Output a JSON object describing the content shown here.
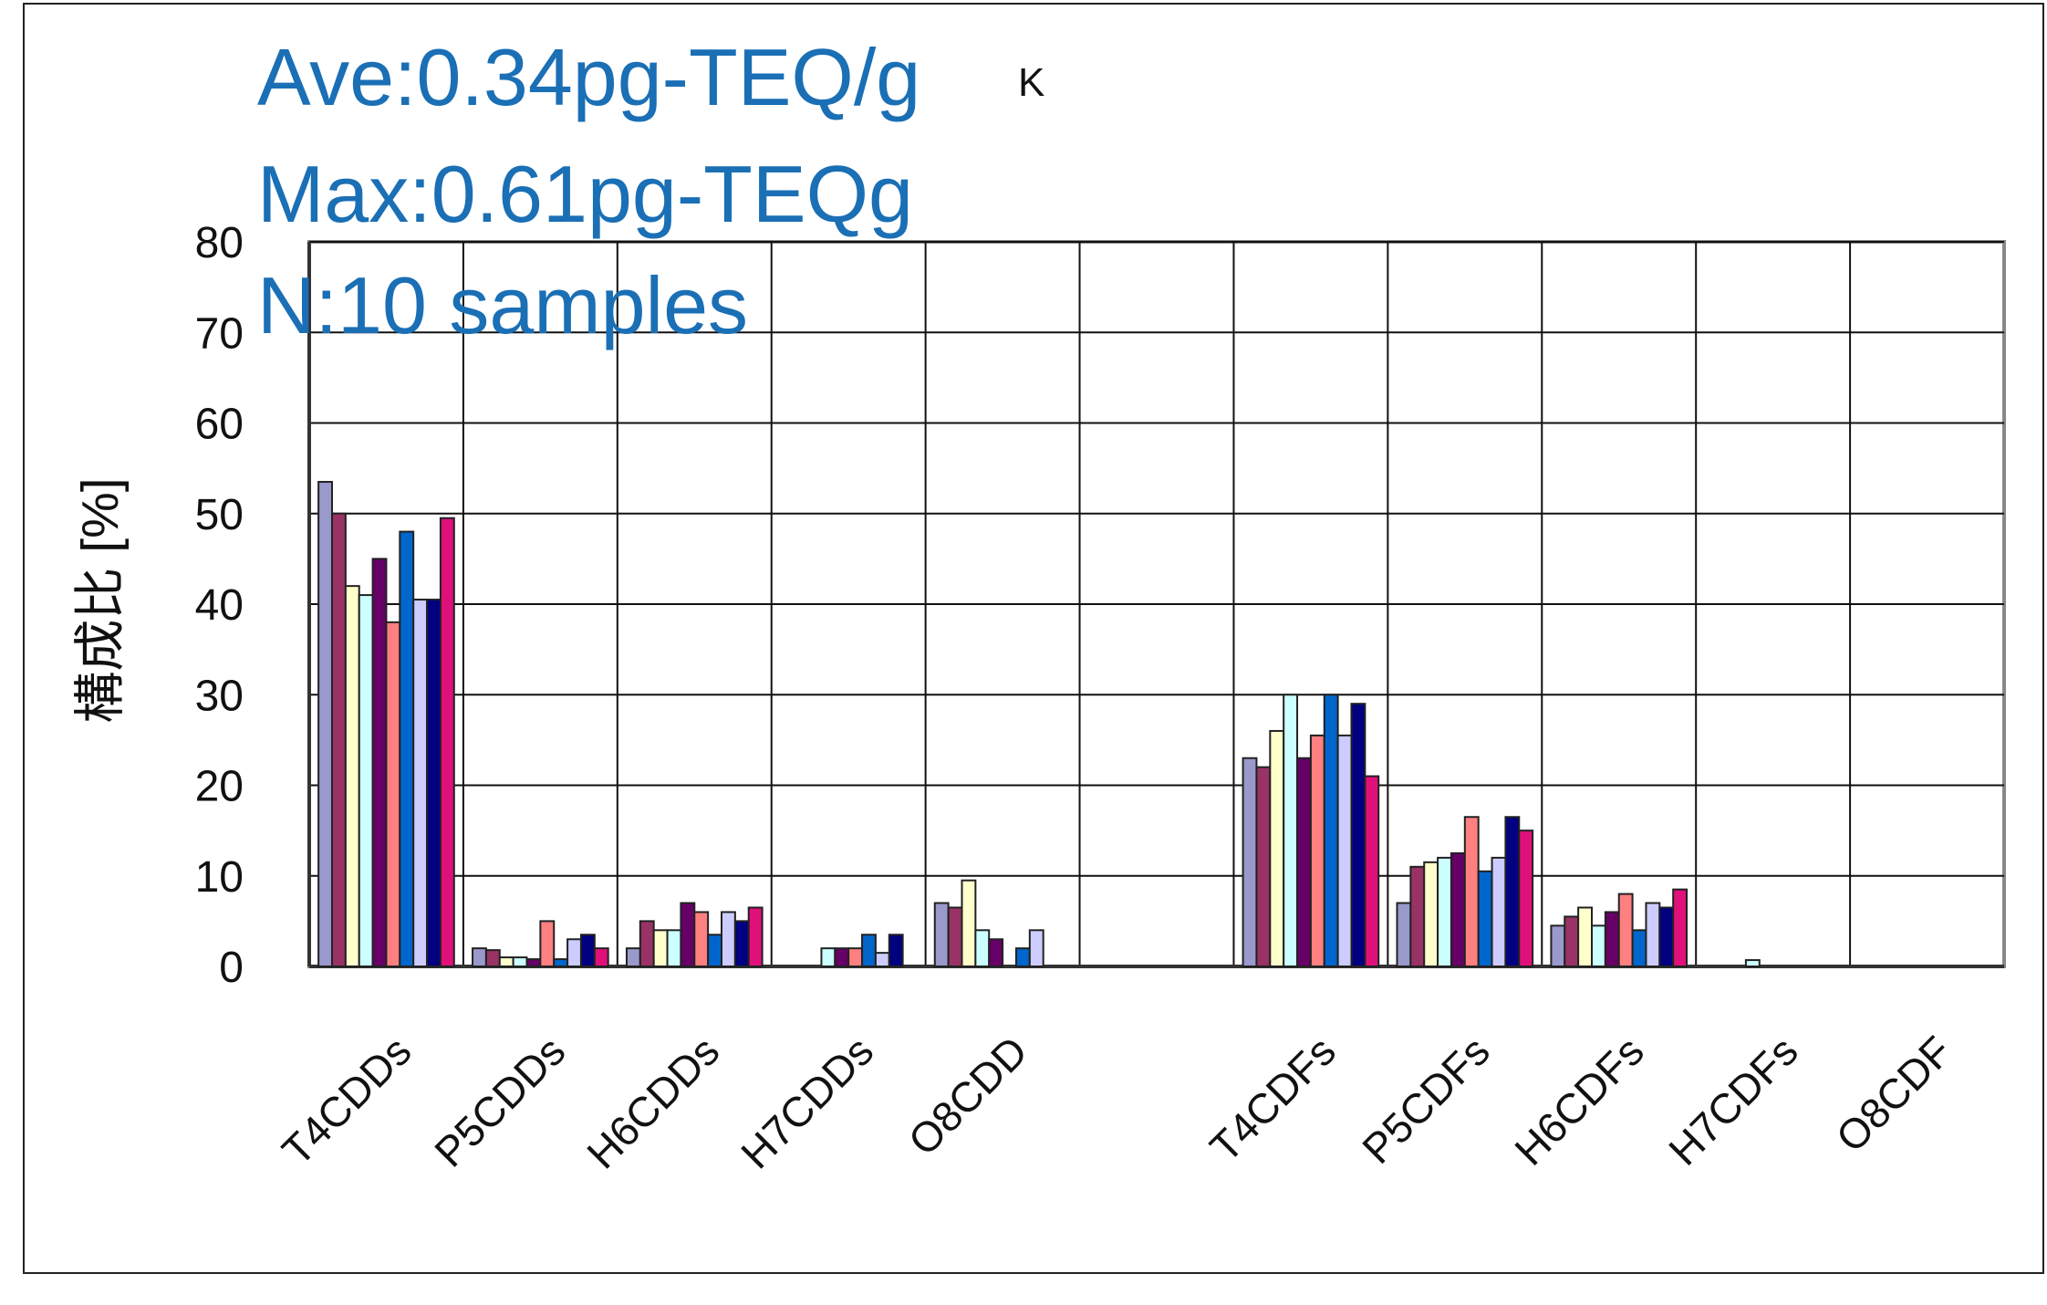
{
  "chart_data": {
    "type": "bar",
    "annotations": [
      "Ave:0.34pg-TEQ/g",
      "Max:0.61pg-TEQg",
      "N:10 samples",
      "K"
    ],
    "ylabel": "構成比 [%]",
    "categories": [
      "T4CDDs",
      "P5CDDs",
      "H6CDDs",
      "H7CDDs",
      "O8CDD",
      null,
      "T4CDFs",
      "P5CDFs",
      "H6CDFs",
      "H7CDFs",
      "O8CDF"
    ],
    "series": [
      {
        "color": "#9999cc",
        "values": [
          53.5,
          2,
          2,
          0,
          7,
          null,
          23,
          7,
          4.5,
          0,
          0
        ]
      },
      {
        "color": "#993366",
        "values": [
          50,
          1.8,
          5,
          0,
          6.5,
          null,
          22,
          11,
          5.5,
          0,
          0
        ]
      },
      {
        "color": "#ffffcc",
        "values": [
          42,
          1,
          4,
          0,
          9.5,
          null,
          26,
          11.5,
          6.5,
          0,
          0
        ]
      },
      {
        "color": "#ccffff",
        "values": [
          41,
          1,
          4,
          2,
          4,
          null,
          30,
          12,
          4.5,
          0.7,
          0
        ]
      },
      {
        "color": "#660066",
        "values": [
          45,
          0.8,
          7,
          2,
          3,
          null,
          23,
          12.5,
          6,
          0,
          0
        ]
      },
      {
        "color": "#ff8080",
        "values": [
          38,
          5,
          6,
          2,
          0,
          null,
          25.5,
          16.5,
          8,
          0,
          0
        ]
      },
      {
        "color": "#0066cc",
        "values": [
          48,
          0.8,
          3.5,
          3.5,
          2,
          null,
          30,
          10.5,
          4,
          0,
          0
        ]
      },
      {
        "color": "#ccccff",
        "values": [
          40.5,
          3,
          6,
          1.5,
          4,
          null,
          25.5,
          12,
          7,
          0,
          0
        ]
      },
      {
        "color": "#000080",
        "values": [
          40.5,
          3.5,
          5,
          3.5,
          0,
          null,
          29,
          16.5,
          6.5,
          0,
          0
        ]
      },
      {
        "color": "#e0107a",
        "values": [
          49.5,
          2,
          6.5,
          0,
          0,
          null,
          21,
          15,
          8.5,
          0,
          0
        ]
      }
    ],
    "ylim": [
      0,
      80
    ],
    "yticks": [
      0,
      10,
      20,
      30,
      40,
      50,
      60,
      70,
      80
    ],
    "grid": true
  }
}
